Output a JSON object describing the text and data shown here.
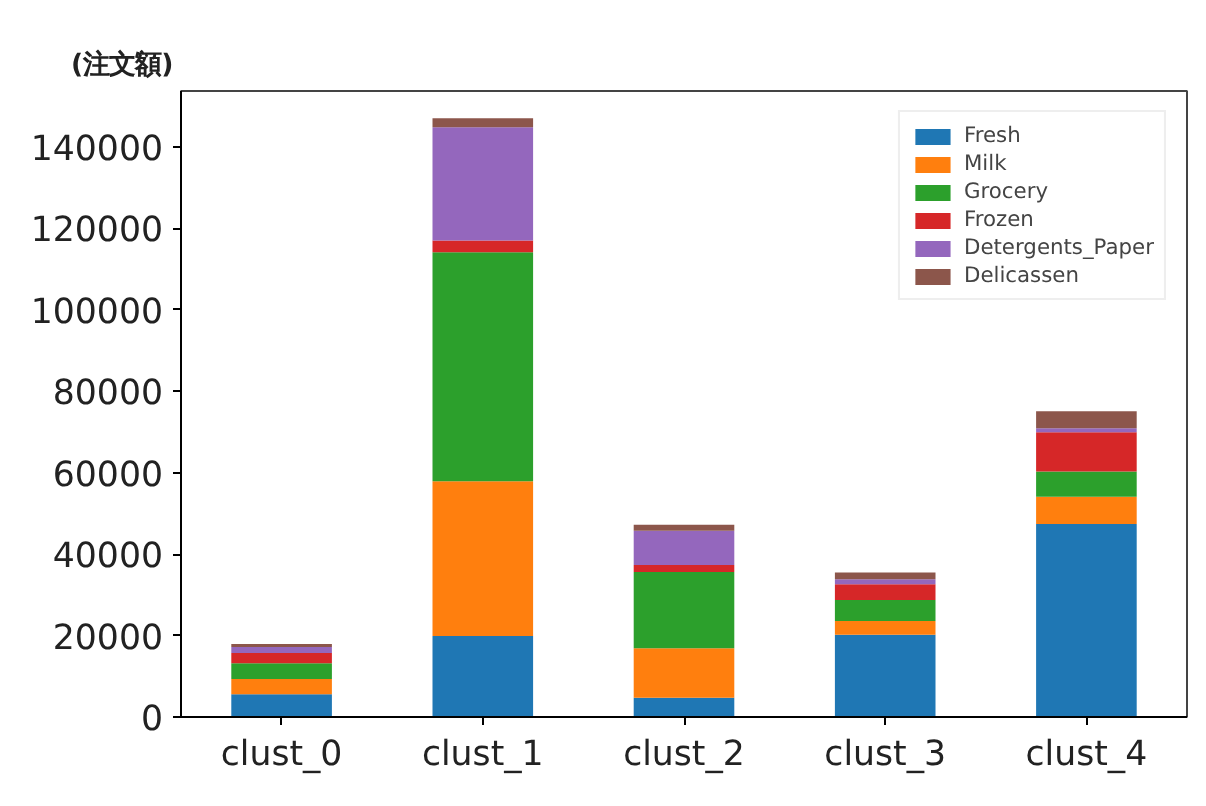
{
  "chart_data": {
    "type": "bar",
    "stacked": true,
    "ylabel": "(注文額)",
    "categories": [
      "clust_0",
      "clust_1",
      "clust_2",
      "clust_3",
      "clust_4"
    ],
    "series": [
      {
        "name": "Fresh",
        "color": "#1f77b4",
        "values": [
          5600,
          19900,
          4700,
          20200,
          47400
        ]
      },
      {
        "name": "Milk",
        "color": "#ff7f0e",
        "values": [
          3700,
          38000,
          12200,
          3400,
          6700
        ]
      },
      {
        "name": "Grocery",
        "color": "#2ca02c",
        "values": [
          3900,
          56200,
          18700,
          5100,
          6200
        ]
      },
      {
        "name": "Frozen",
        "color": "#d62728",
        "values": [
          2500,
          2900,
          1700,
          3900,
          9600
        ]
      },
      {
        "name": "Detergents_Paper",
        "color": "#9467bd",
        "values": [
          1500,
          27800,
          8400,
          1200,
          1000
        ]
      },
      {
        "name": "Delicassen",
        "color": "#8c564b",
        "values": [
          700,
          2200,
          1500,
          1700,
          4200
        ]
      }
    ],
    "ylim": [
      0,
      153700
    ],
    "yticks": [
      0,
      20000,
      40000,
      60000,
      80000,
      100000,
      120000,
      140000
    ],
    "grid": false,
    "legend": "top right"
  }
}
